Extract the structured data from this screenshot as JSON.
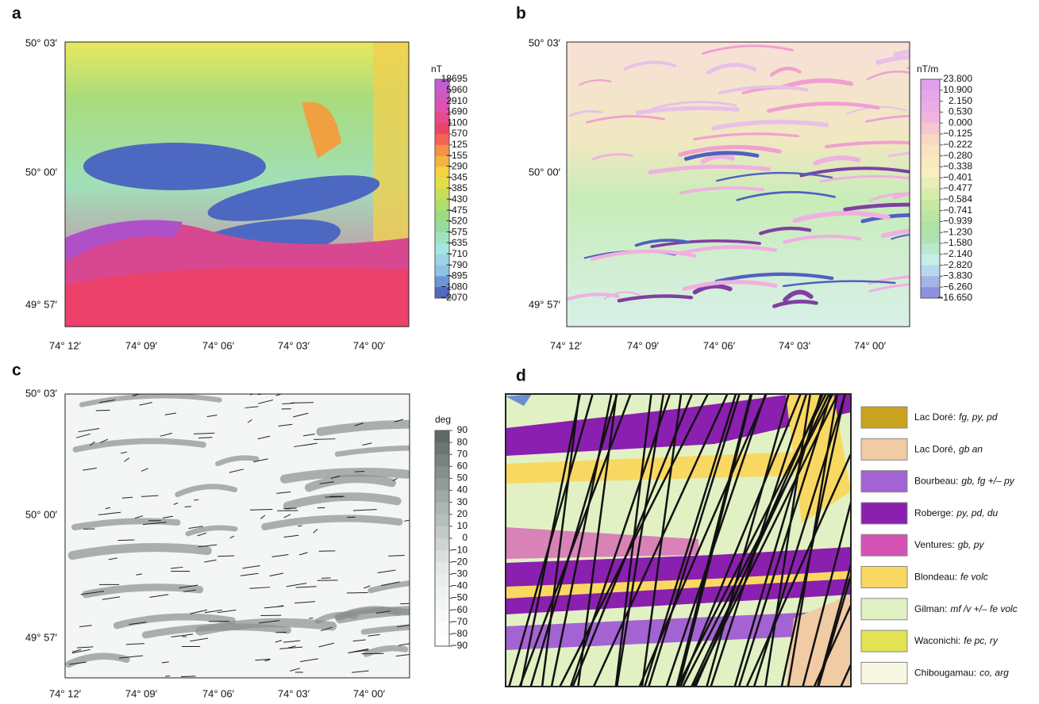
{
  "panels": [
    {
      "label": "a",
      "y_labels": [
        "50° 03′",
        "50° 00′",
        "49° 57′"
      ],
      "x_labels": [
        "74° 12′",
        "74° 09′",
        "74° 06′",
        "74° 03′",
        "74° 00′"
      ],
      "colorbar": {
        "unit": "nT",
        "labels": [
          "18695",
          "5960",
          "2910",
          "1690",
          "1100",
          "570",
          "125",
          "−155",
          "−290",
          "−345",
          "−385",
          "−430",
          "−475",
          "−520",
          "−575",
          "−635",
          "−710",
          "−790",
          "−895",
          "−1080",
          "−2070"
        ]
      }
    },
    {
      "label": "b",
      "y_labels": [
        "50° 03′",
        "50° 00′",
        "49° 57′"
      ],
      "x_labels": [
        "74° 12′",
        "74° 09′",
        "74° 06′",
        "74° 03′",
        "74° 00′"
      ],
      "colorbar": {
        "unit": "nT/m",
        "labels": [
          "23.800",
          "10.900",
          "2.150",
          "0.530",
          "0.000",
          "−0.125",
          "−0.222",
          "−0.280",
          "−0.338",
          "−0.401",
          "−0.477",
          "−0.584",
          "−0.741",
          "−0.939",
          "−1.230",
          "−1.580",
          "−2.140",
          "−2.820",
          "−3.830",
          "−6.260",
          "−16.650"
        ]
      }
    },
    {
      "label": "c",
      "y_labels": [
        "50° 03′",
        "50° 00′",
        "49° 57′"
      ],
      "x_labels": [
        "74° 12′",
        "74° 09′",
        "74° 06′",
        "74° 03′",
        "74° 00′"
      ],
      "colorbar": {
        "unit": "deg",
        "labels": [
          "90",
          "80",
          "70",
          "60",
          "50",
          "40",
          "30",
          "20",
          "10",
          "0",
          "−10",
          "−20",
          "−30",
          "−40",
          "−50",
          "−60",
          "−70",
          "−80",
          "−90"
        ]
      }
    },
    {
      "label": "d",
      "legend": [
        {
          "name": "Lac Doré:",
          "code": "fg, py, pd",
          "color": "#c9a21f"
        },
        {
          "name": "Lac Doré,",
          "code": "gb an",
          "color": "#f1cba4"
        },
        {
          "name": "Bourbeau:",
          "code": "gb, fg +/– py",
          "color": "#a463d2"
        },
        {
          "name": "Roberge:",
          "code": "py, pd, du",
          "color": "#8b1fb0"
        },
        {
          "name": "Ventures:",
          "code": "gb, py",
          "color": "#d452b4"
        },
        {
          "name": "Blondeau:",
          "code": "fe volc",
          "color": "#f9d862"
        },
        {
          "name": "Gilman:",
          "code": "mf /v +/– fe volc",
          "color": "#e1f1c3"
        },
        {
          "name": "Waconichi:",
          "code": "fe pc, ry",
          "color": "#e2e253"
        },
        {
          "name": "Chibougamau:",
          "code": "co, arg",
          "color": "#f8f8e2"
        }
      ]
    }
  ]
}
